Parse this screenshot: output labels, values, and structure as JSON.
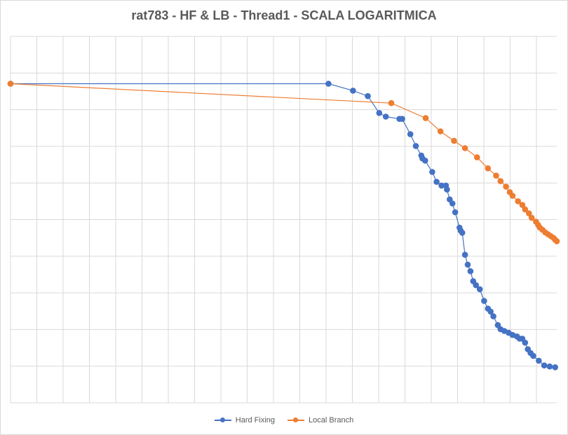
{
  "chart_data": {
    "type": "scatter",
    "title": "rat783 - HF & LB - Thread1 - SCALA LOGARITMICA",
    "xlabel": "",
    "ylabel": "",
    "xlim": [
      0,
      1000
    ],
    "ylim": [
      0,
      1
    ],
    "grid": true,
    "tick_labels_shown": false,
    "legend_position": "bottom",
    "series": [
      {
        "name": "Hard Fixing",
        "color": "#4472c4",
        "points": [
          [
            0,
            0.871
          ],
          [
            582,
            0.871
          ],
          [
            627,
            0.852
          ],
          [
            654,
            0.837
          ],
          [
            675,
            0.791
          ],
          [
            687,
            0.781
          ],
          [
            712,
            0.775
          ],
          [
            717,
            0.775
          ],
          [
            732,
            0.733
          ],
          [
            742,
            0.701
          ],
          [
            752,
            0.675
          ],
          [
            754,
            0.667
          ],
          [
            759,
            0.661
          ],
          [
            772,
            0.63
          ],
          [
            780,
            0.603
          ],
          [
            789,
            0.593
          ],
          [
            797,
            0.593
          ],
          [
            799,
            0.582
          ],
          [
            804,
            0.555
          ],
          [
            809,
            0.544
          ],
          [
            814,
            0.52
          ],
          [
            822,
            0.478
          ],
          [
            824,
            0.47
          ],
          [
            827,
            0.464
          ],
          [
            832,
            0.404
          ],
          [
            837,
            0.377
          ],
          [
            842,
            0.359
          ],
          [
            847,
            0.332
          ],
          [
            852,
            0.321
          ],
          [
            859,
            0.31
          ],
          [
            867,
            0.278
          ],
          [
            874,
            0.257
          ],
          [
            879,
            0.249
          ],
          [
            884,
            0.236
          ],
          [
            892,
            0.212
          ],
          [
            897,
            0.201
          ],
          [
            904,
            0.196
          ],
          [
            912,
            0.191
          ],
          [
            919,
            0.185
          ],
          [
            927,
            0.181
          ],
          [
            932,
            0.175
          ],
          [
            937,
            0.175
          ],
          [
            942,
            0.164
          ],
          [
            947,
            0.146
          ],
          [
            952,
            0.136
          ],
          [
            957,
            0.128
          ],
          [
            967,
            0.115
          ],
          [
            977,
            0.102
          ],
          [
            987,
            0.099
          ],
          [
            997,
            0.097
          ]
        ]
      },
      {
        "name": "Local Branch",
        "color": "#ed7d31",
        "points": [
          [
            0,
            0.871
          ],
          [
            697,
            0.818
          ],
          [
            760,
            0.777
          ],
          [
            787,
            0.741
          ],
          [
            812,
            0.715
          ],
          [
            832,
            0.695
          ],
          [
            854,
            0.67
          ],
          [
            874,
            0.64
          ],
          [
            889,
            0.62
          ],
          [
            897,
            0.605
          ],
          [
            907,
            0.59
          ],
          [
            914,
            0.575
          ],
          [
            919,
            0.565
          ],
          [
            929,
            0.55
          ],
          [
            937,
            0.54
          ],
          [
            942,
            0.528
          ],
          [
            949,
            0.517
          ],
          [
            954,
            0.505
          ],
          [
            962,
            0.494
          ],
          [
            966,
            0.485
          ],
          [
            969,
            0.478
          ],
          [
            974,
            0.472
          ],
          [
            979,
            0.465
          ],
          [
            984,
            0.46
          ],
          [
            989,
            0.455
          ],
          [
            994,
            0.45
          ],
          [
            997,
            0.445
          ],
          [
            1000,
            0.441
          ]
        ]
      }
    ]
  }
}
